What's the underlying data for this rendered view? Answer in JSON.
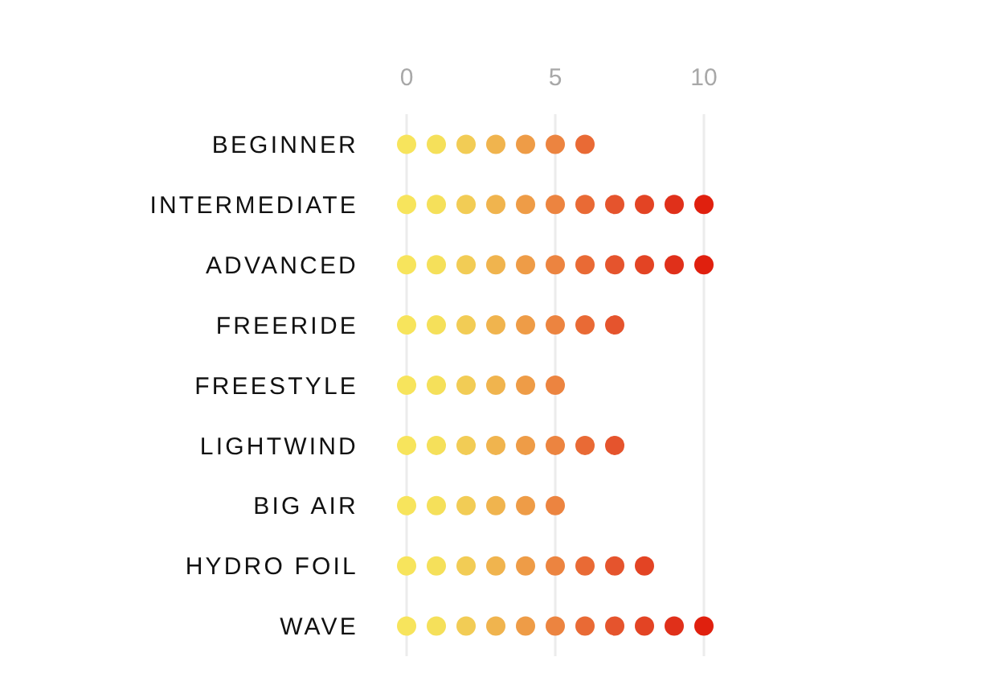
{
  "chart_data": {
    "type": "scatter",
    "orientation": "horizontal",
    "categories": [
      "BEGINNER",
      "INTERMEDIATE",
      "ADVANCED",
      "FREERIDE",
      "FREESTYLE",
      "LIGHTWIND",
      "BIG AIR",
      "HYDRO FOIL",
      "WAVE"
    ],
    "series": [
      {
        "color": "#f7e45c",
        "values": [
          0,
          0,
          0,
          0,
          0,
          0,
          0,
          0,
          0
        ]
      },
      {
        "color": "#f5e05a",
        "values": [
          1,
          1,
          1,
          1,
          1,
          1,
          1,
          1,
          1
        ]
      },
      {
        "color": "#f2cc55",
        "values": [
          2,
          2,
          2,
          2,
          2,
          2,
          2,
          2,
          2
        ]
      },
      {
        "color": "#f0b44e",
        "values": [
          3,
          3,
          3,
          3,
          3,
          3,
          3,
          3,
          3
        ]
      },
      {
        "color": "#ee9c47",
        "values": [
          4,
          4,
          4,
          4,
          4,
          4,
          4,
          4,
          4
        ]
      },
      {
        "color": "#ec8440",
        "values": [
          5,
          5,
          5,
          5,
          5,
          5,
          5,
          5,
          5
        ]
      },
      {
        "color": "#e96a35",
        "values": [
          6,
          6,
          6,
          6,
          null,
          6,
          null,
          6,
          6
        ]
      },
      {
        "color": "#e5542d",
        "values": [
          null,
          7,
          7,
          7,
          null,
          7,
          null,
          7,
          7
        ]
      },
      {
        "color": "#e34424",
        "values": [
          null,
          8,
          8,
          null,
          null,
          null,
          null,
          8,
          8
        ]
      },
      {
        "color": "#e0301a",
        "values": [
          null,
          9,
          9,
          null,
          null,
          null,
          null,
          null,
          9
        ]
      },
      {
        "color": "#e0200e",
        "values": [
          null,
          10,
          10,
          null,
          null,
          null,
          null,
          null,
          10
        ]
      }
    ],
    "marker": "circle",
    "xlim": [
      0,
      10
    ],
    "xticks": [
      0,
      5,
      10
    ],
    "grid": "x"
  }
}
